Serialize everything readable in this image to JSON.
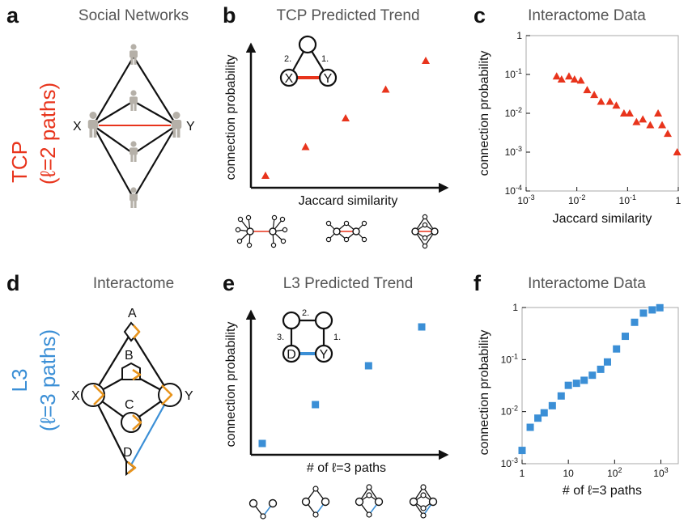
{
  "labels": {
    "a": "a",
    "b": "b",
    "c": "c",
    "d": "d",
    "e": "e",
    "f": "f"
  },
  "titles": {
    "a": "Social Networks",
    "b": "TCP Predicted Trend",
    "c": "Interactome Data",
    "d": "Interactome",
    "e": "L3 Predicted Trend",
    "f": "Interactome Data"
  },
  "side": {
    "tcp_top": "TCP",
    "tcp_bottom": "(ℓ=2 paths)",
    "l3_top": "L3",
    "l3_bottom": "(ℓ=3 paths)"
  },
  "nodes": {
    "x": "X",
    "y": "Y",
    "d": "D",
    "a_node": "A",
    "b_node": "B",
    "c_node": "C",
    "d_node": "D",
    "path1": "1.",
    "path2": "2.",
    "path3": "3."
  },
  "colors": {
    "red": "#e8341c",
    "blue": "#3b8fd6",
    "orange": "#e8941c",
    "person": "#b5b0a8"
  },
  "chart_data": [
    {
      "id": "b",
      "type": "scatter",
      "title": "TCP Predicted Trend",
      "xlabel": "Jaccard similarity",
      "ylabel": "connection probability",
      "marker": "triangle",
      "x": [
        1,
        2,
        3,
        4,
        5
      ],
      "y": [
        1,
        2,
        3,
        4,
        5
      ]
    },
    {
      "id": "c",
      "type": "scatter",
      "title": "Interactome Data",
      "xlabel": "Jaccard similarity",
      "ylabel": "connection probability",
      "xscale": "log",
      "yscale": "log",
      "xlim": [
        0.001,
        1
      ],
      "ylim": [
        0.0001,
        1
      ],
      "xticks": [
        "10-3",
        "10-2",
        "10-1",
        "1"
      ],
      "yticks": [
        "10-4",
        "10-3",
        "10-2",
        "10-1",
        "1"
      ],
      "marker": "triangle",
      "x": [
        0.004,
        0.005,
        0.007,
        0.009,
        0.012,
        0.016,
        0.022,
        0.03,
        0.045,
        0.06,
        0.085,
        0.11,
        0.15,
        0.2,
        0.28,
        0.4,
        0.48,
        0.62,
        0.95
      ],
      "y": [
        0.09,
        0.075,
        0.09,
        0.075,
        0.07,
        0.04,
        0.03,
        0.02,
        0.02,
        0.016,
        0.01,
        0.01,
        0.006,
        0.007,
        0.005,
        0.01,
        0.005,
        0.003,
        0.001
      ]
    },
    {
      "id": "e",
      "type": "scatter",
      "title": "L3 Predicted Trend",
      "xlabel": "# of ℓ=3 paths",
      "ylabel": "connection probability",
      "marker": "square",
      "x": [
        1,
        2,
        3,
        4
      ],
      "y": [
        1,
        2,
        3,
        4
      ]
    },
    {
      "id": "f",
      "type": "scatter",
      "title": "Interactome Data",
      "xlabel": "# of ℓ=3 paths",
      "ylabel": "connection probability",
      "xscale": "log",
      "yscale": "log",
      "xlim": [
        1,
        1300
      ],
      "ylim": [
        0.001,
        1
      ],
      "xticks": [
        "1",
        "10",
        "102",
        "103"
      ],
      "yticks": [
        "10-3",
        "10-2",
        "10-1",
        "1"
      ],
      "marker": "square",
      "x": [
        1,
        1.5,
        2.2,
        3,
        4.5,
        7,
        10,
        15,
        22,
        33,
        50,
        70,
        110,
        170,
        270,
        420,
        650,
        950
      ],
      "y": [
        0.0018,
        0.005,
        0.0075,
        0.0095,
        0.013,
        0.02,
        0.032,
        0.035,
        0.04,
        0.05,
        0.065,
        0.09,
        0.16,
        0.28,
        0.52,
        0.78,
        0.9,
        0.99
      ]
    }
  ]
}
